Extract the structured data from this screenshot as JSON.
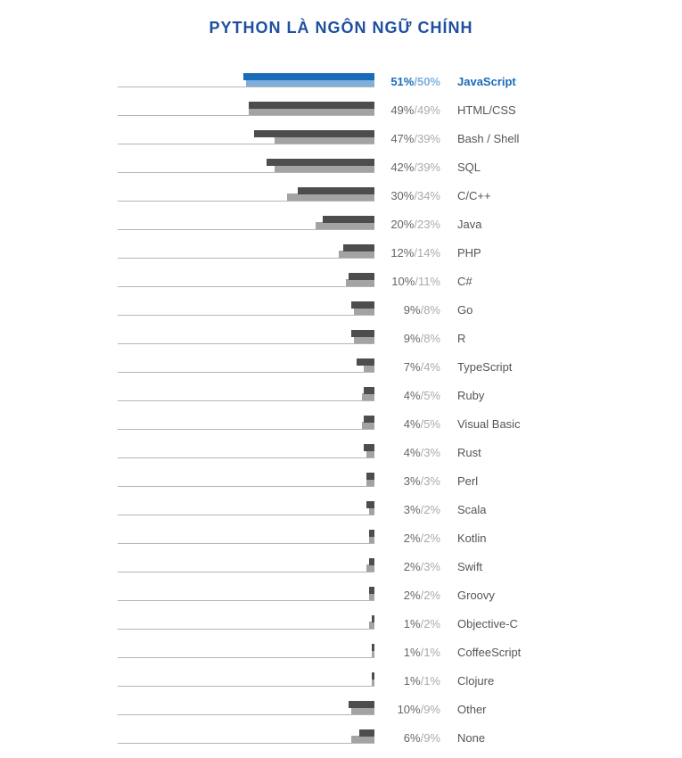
{
  "chart_data": {
    "type": "bar",
    "title": "PYTHON LÀ NGÔN NGỮ CHÍNH",
    "highlight": "JavaScript",
    "colors": {
      "series_a": "#4d4d4d",
      "series_b": "#a3a3a3",
      "highlight_a": "#1a6bb8",
      "highlight_b": "#7fb0dd",
      "title": "#1f4fa0"
    },
    "categories": [
      "JavaScript",
      "HTML/CSS",
      "Bash / Shell",
      "SQL",
      "C/C++",
      "Java",
      "PHP",
      "C#",
      "Go",
      "R",
      "TypeScript",
      "Ruby",
      "Visual Basic",
      "Rust",
      "Perl",
      "Scala",
      "Kotlin",
      "Swift",
      "Groovy",
      "Objective-C",
      "CoffeeScript",
      "Clojure",
      "Other",
      "None"
    ],
    "series": [
      {
        "name": "a",
        "values": [
          51,
          49,
          47,
          42,
          30,
          20,
          12,
          10,
          9,
          9,
          7,
          4,
          4,
          4,
          3,
          3,
          2,
          2,
          2,
          1,
          1,
          1,
          10,
          6
        ]
      },
      {
        "name": "b",
        "values": [
          50,
          49,
          39,
          39,
          34,
          23,
          14,
          11,
          8,
          8,
          4,
          5,
          5,
          3,
          3,
          2,
          2,
          3,
          2,
          2,
          1,
          1,
          9,
          9
        ]
      }
    ],
    "labels_a": [
      "51%",
      "49%",
      "47%",
      "42%",
      "30%",
      "20%",
      "12%",
      "10%",
      "9%",
      "9%",
      "7%",
      "4%",
      "4%",
      "4%",
      "3%",
      "3%",
      "2%",
      "2%",
      "2%",
      "1%",
      "1%",
      "1%",
      "10%",
      "6%"
    ],
    "labels_b": [
      "/50%",
      "/49%",
      "/39%",
      "/39%",
      "/34%",
      "/23%",
      "/14%",
      "/11%",
      "/8%",
      "/8%",
      "/4%",
      "/5%",
      "/5%",
      "/3%",
      "/3%",
      "/2%",
      "/2%",
      "/3%",
      "/2%",
      "/2%",
      "/1%",
      "/1%",
      "/9%",
      "/9%"
    ]
  }
}
